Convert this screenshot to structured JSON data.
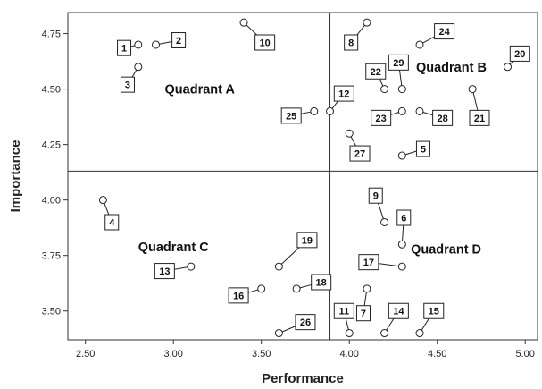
{
  "chart_data": {
    "type": "scatter",
    "xlabel": "Performance",
    "ylabel": "Importance",
    "xlim": [
      2.4,
      5.07
    ],
    "ylim": [
      3.37,
      4.845
    ],
    "x_ticks": [
      "2.50",
      "3.00",
      "3.50",
      "4.00",
      "4.50",
      "5.00"
    ],
    "y_ticks": [
      "3.50",
      "3.75",
      "4.00",
      "4.25",
      "4.50",
      "4.75"
    ],
    "x_tick_values": [
      2.5,
      3.0,
      3.5,
      4.0,
      4.5,
      5.0
    ],
    "y_tick_values": [
      3.5,
      3.75,
      4.0,
      4.25,
      4.5,
      4.75
    ],
    "divider_x": 3.89,
    "divider_y": 4.13,
    "quadrants": [
      {
        "label": "Quadrant A",
        "x": 3.15,
        "y": 4.5
      },
      {
        "label": "Quadrant B",
        "x": 4.58,
        "y": 4.6
      },
      {
        "label": "Quadrant C",
        "x": 3.0,
        "y": 3.79
      },
      {
        "label": "Quadrant D",
        "x": 4.55,
        "y": 3.78
      }
    ],
    "points": [
      {
        "label": "1",
        "x": 2.8,
        "y": 4.7,
        "lx": 2.72,
        "ly": 4.685
      },
      {
        "label": "2",
        "x": 2.9,
        "y": 4.7,
        "lx": 3.03,
        "ly": 4.72
      },
      {
        "label": "3",
        "x": 2.8,
        "y": 4.6,
        "lx": 2.74,
        "ly": 4.52
      },
      {
        "label": "4",
        "x": 2.6,
        "y": 4.0,
        "lx": 2.65,
        "ly": 3.9
      },
      {
        "label": "5",
        "x": 4.3,
        "y": 4.2,
        "lx": 4.42,
        "ly": 4.23
      },
      {
        "label": "6",
        "x": 4.3,
        "y": 3.8,
        "lx": 4.31,
        "ly": 3.92
      },
      {
        "label": "7",
        "x": 4.1,
        "y": 3.6,
        "lx": 4.08,
        "ly": 3.49
      },
      {
        "label": "8",
        "x": 4.1,
        "y": 4.8,
        "lx": 4.01,
        "ly": 4.71
      },
      {
        "label": "9",
        "x": 4.2,
        "y": 3.9,
        "lx": 4.15,
        "ly": 4.02
      },
      {
        "label": "10",
        "x": 3.4,
        "y": 4.8,
        "lx": 3.52,
        "ly": 4.71
      },
      {
        "label": "11",
        "x": 4.0,
        "y": 3.4,
        "lx": 3.97,
        "ly": 3.5
      },
      {
        "label": "12",
        "x": 3.89,
        "y": 4.4,
        "lx": 3.97,
        "ly": 4.48
      },
      {
        "label": "13",
        "x": 3.1,
        "y": 3.7,
        "lx": 2.95,
        "ly": 3.68
      },
      {
        "label": "14",
        "x": 4.2,
        "y": 3.4,
        "lx": 4.28,
        "ly": 3.5
      },
      {
        "label": "15",
        "x": 4.4,
        "y": 3.4,
        "lx": 4.48,
        "ly": 3.5
      },
      {
        "label": "16",
        "x": 3.5,
        "y": 3.6,
        "lx": 3.37,
        "ly": 3.57
      },
      {
        "label": "17",
        "x": 4.3,
        "y": 3.7,
        "lx": 4.11,
        "ly": 3.72
      },
      {
        "label": "18",
        "x": 3.7,
        "y": 3.6,
        "lx": 3.84,
        "ly": 3.63
      },
      {
        "label": "19",
        "x": 3.6,
        "y": 3.7,
        "lx": 3.76,
        "ly": 3.82
      },
      {
        "label": "20",
        "x": 4.9,
        "y": 4.6,
        "lx": 4.97,
        "ly": 4.66
      },
      {
        "label": "21",
        "x": 4.7,
        "y": 4.5,
        "lx": 4.74,
        "ly": 4.37
      },
      {
        "label": "22",
        "x": 4.2,
        "y": 4.5,
        "lx": 4.15,
        "ly": 4.58
      },
      {
        "label": "23",
        "x": 4.3,
        "y": 4.4,
        "lx": 4.18,
        "ly": 4.37
      },
      {
        "label": "24",
        "x": 4.4,
        "y": 4.7,
        "lx": 4.54,
        "ly": 4.76
      },
      {
        "label": "25",
        "x": 3.8,
        "y": 4.4,
        "lx": 3.67,
        "ly": 4.38
      },
      {
        "label": "26",
        "x": 3.6,
        "y": 3.4,
        "lx": 3.75,
        "ly": 3.45
      },
      {
        "label": "27",
        "x": 4.0,
        "y": 4.3,
        "lx": 4.06,
        "ly": 4.21
      },
      {
        "label": "28",
        "x": 4.4,
        "y": 4.4,
        "lx": 4.53,
        "ly": 4.37
      },
      {
        "label": "29",
        "x": 4.3,
        "y": 4.5,
        "lx": 4.28,
        "ly": 4.62
      }
    ]
  }
}
